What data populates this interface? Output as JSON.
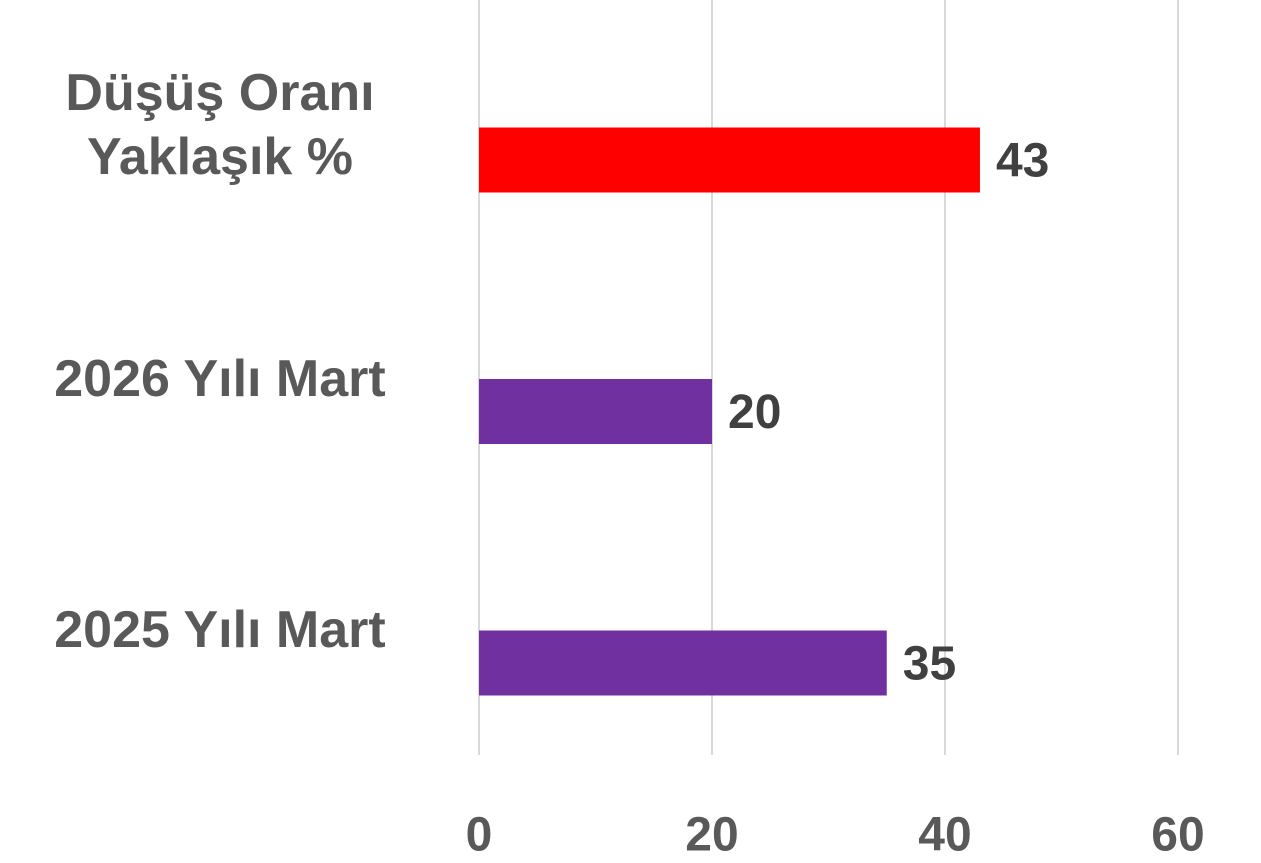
{
  "chart_data": {
    "type": "barh",
    "categories": [
      "Düşüş Oranı Yaklaşık %",
      "2026 Yılı Mart",
      "2025 Yılı Mart"
    ],
    "values": [
      43,
      20,
      35
    ],
    "colors": [
      "#ff0000",
      "#7030a0",
      "#7030a0"
    ],
    "xlim": [
      0,
      60
    ],
    "xticks": [
      0,
      20,
      40,
      60
    ],
    "grid": true
  }
}
